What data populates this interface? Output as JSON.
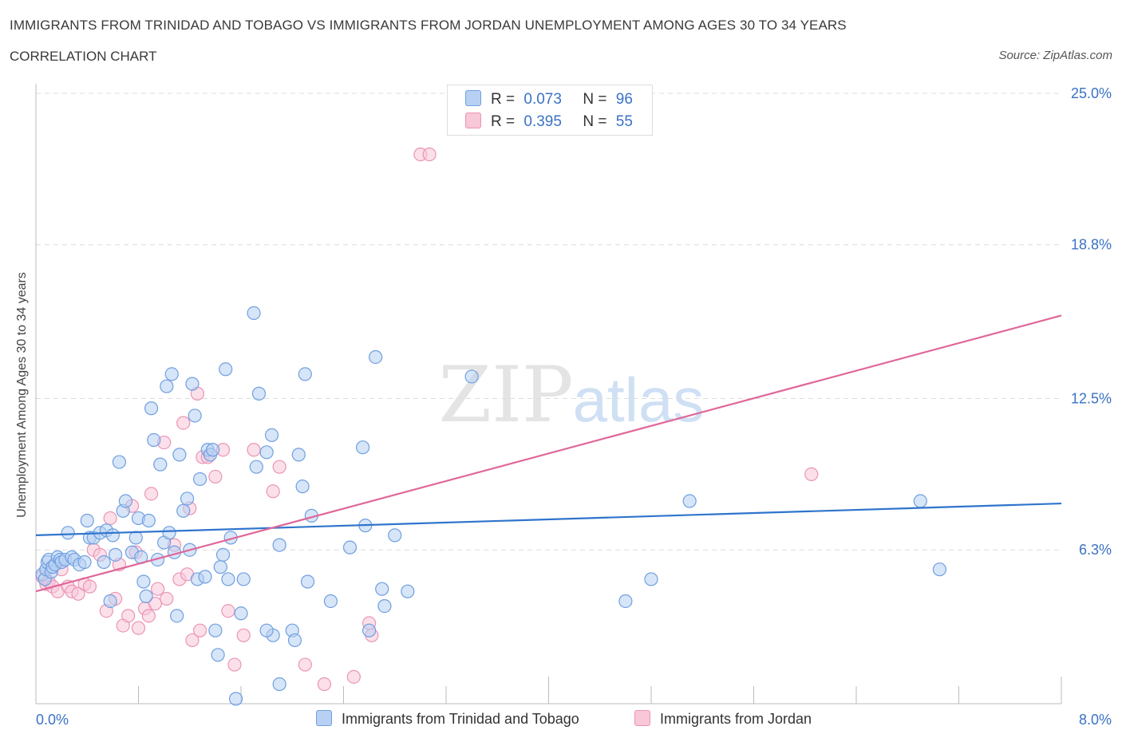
{
  "header": {
    "title": "IMMIGRANTS FROM TRINIDAD AND TOBAGO VS IMMIGRANTS FROM JORDAN UNEMPLOYMENT AMONG AGES 30 TO 34 YEARS",
    "subtitle": "CORRELATION CHART",
    "source": "Source: ZipAtlas.com"
  },
  "watermark": {
    "zip": "ZIP",
    "atlas": "atlas"
  },
  "legend": {
    "r_label": "R =",
    "n_label": "N =",
    "series1": {
      "r": "0.073",
      "n": "96"
    },
    "series2": {
      "r": "0.395",
      "n": "55"
    }
  },
  "chart_data": {
    "type": "scatter",
    "title": "IMMIGRANTS FROM TRINIDAD AND TOBAGO VS IMMIGRANTS FROM JORDAN UNEMPLOYMENT AMONG AGES 30 TO 34 YEARS",
    "xlabel": "",
    "ylabel": "Unemployment Among Ages 30 to 34 years",
    "xlim": [
      0,
      8
    ],
    "ylim": [
      0,
      25.0
    ],
    "x_tick_labels": [
      "0.0%",
      "8.0%"
    ],
    "y_ticks": [
      6.3,
      12.5,
      18.8,
      25.0
    ],
    "y_tick_labels": [
      "6.3%",
      "12.5%",
      "18.8%",
      "25.0%"
    ],
    "grid": true,
    "legend_position": "top-center",
    "series": [
      {
        "name": "Immigrants from Trinidad and Tobago",
        "color": "#6f9fe0",
        "fill": "#b7d0f3",
        "trend_color": "#2f74cc",
        "trend": [
          [
            0,
            6.9
          ],
          [
            8,
            8.2
          ]
        ],
        "points": [
          [
            0.05,
            5.3
          ],
          [
            0.07,
            5.1
          ],
          [
            0.08,
            5.5
          ],
          [
            0.09,
            5.8
          ],
          [
            0.1,
            5.9
          ],
          [
            0.12,
            5.4
          ],
          [
            0.13,
            5.6
          ],
          [
            0.15,
            5.7
          ],
          [
            0.17,
            6.0
          ],
          [
            0.19,
            5.9
          ],
          [
            0.2,
            5.8
          ],
          [
            0.23,
            5.9
          ],
          [
            0.25,
            7.0
          ],
          [
            0.28,
            6.0
          ],
          [
            0.3,
            5.9
          ],
          [
            0.34,
            5.7
          ],
          [
            0.38,
            5.8
          ],
          [
            0.4,
            7.5
          ],
          [
            0.42,
            6.8
          ],
          [
            0.45,
            6.8
          ],
          [
            0.5,
            7.0
          ],
          [
            0.53,
            5.8
          ],
          [
            0.55,
            7.1
          ],
          [
            0.58,
            4.2
          ],
          [
            0.6,
            6.9
          ],
          [
            0.62,
            6.1
          ],
          [
            0.65,
            9.9
          ],
          [
            0.68,
            7.9
          ],
          [
            0.7,
            8.3
          ],
          [
            0.75,
            6.2
          ],
          [
            0.78,
            6.8
          ],
          [
            0.8,
            7.6
          ],
          [
            0.82,
            6.0
          ],
          [
            0.84,
            5.0
          ],
          [
            0.86,
            4.4
          ],
          [
            0.88,
            7.5
          ],
          [
            0.9,
            12.1
          ],
          [
            0.92,
            10.8
          ],
          [
            0.95,
            5.9
          ],
          [
            0.97,
            9.8
          ],
          [
            1.0,
            6.6
          ],
          [
            1.02,
            13.0
          ],
          [
            1.04,
            7.0
          ],
          [
            1.06,
            13.5
          ],
          [
            1.08,
            6.2
          ],
          [
            1.1,
            3.6
          ],
          [
            1.12,
            10.2
          ],
          [
            1.15,
            7.9
          ],
          [
            1.18,
            8.4
          ],
          [
            1.2,
            6.3
          ],
          [
            1.22,
            13.1
          ],
          [
            1.24,
            11.8
          ],
          [
            1.26,
            5.1
          ],
          [
            1.28,
            9.2
          ],
          [
            1.32,
            5.2
          ],
          [
            1.34,
            10.4
          ],
          [
            1.36,
            10.2
          ],
          [
            1.38,
            10.4
          ],
          [
            1.4,
            3.0
          ],
          [
            1.42,
            2.0
          ],
          [
            1.44,
            5.6
          ],
          [
            1.46,
            6.1
          ],
          [
            1.48,
            13.7
          ],
          [
            1.5,
            5.1
          ],
          [
            1.52,
            6.8
          ],
          [
            1.56,
            0.2
          ],
          [
            1.6,
            3.7
          ],
          [
            1.62,
            5.1
          ],
          [
            1.7,
            16.0
          ],
          [
            1.72,
            9.7
          ],
          [
            1.74,
            12.7
          ],
          [
            1.8,
            10.3
          ],
          [
            1.84,
            11.0
          ],
          [
            1.9,
            6.5
          ],
          [
            2.0,
            3.0
          ],
          [
            2.02,
            2.6
          ],
          [
            2.05,
            10.2
          ],
          [
            2.08,
            8.9
          ],
          [
            2.1,
            13.5
          ],
          [
            2.12,
            5.0
          ],
          [
            2.15,
            7.7
          ],
          [
            2.3,
            4.2
          ],
          [
            2.45,
            6.4
          ],
          [
            2.55,
            10.5
          ],
          [
            2.57,
            7.3
          ],
          [
            2.6,
            3.0
          ],
          [
            2.65,
            14.2
          ],
          [
            2.7,
            4.7
          ],
          [
            2.72,
            4.0
          ],
          [
            2.8,
            6.9
          ],
          [
            2.9,
            4.6
          ],
          [
            3.4,
            13.4
          ],
          [
            4.6,
            4.2
          ],
          [
            4.8,
            5.1
          ],
          [
            5.1,
            8.3
          ],
          [
            6.9,
            8.3
          ],
          [
            7.05,
            5.5
          ],
          [
            1.9,
            0.8
          ],
          [
            1.85,
            2.8
          ],
          [
            1.8,
            3.0
          ]
        ]
      },
      {
        "name": "Immigrants from Jordan",
        "color": "#ec94b4",
        "fill": "#f8c7d8",
        "trend_color": "#e0679a",
        "trend": [
          [
            0,
            4.6
          ],
          [
            8,
            15.9
          ]
        ],
        "points": [
          [
            0.05,
            5.2
          ],
          [
            0.08,
            4.9
          ],
          [
            0.1,
            5.0
          ],
          [
            0.13,
            4.8
          ],
          [
            0.17,
            4.6
          ],
          [
            0.2,
            5.5
          ],
          [
            0.25,
            4.8
          ],
          [
            0.28,
            4.6
          ],
          [
            0.33,
            4.5
          ],
          [
            0.38,
            4.9
          ],
          [
            0.42,
            4.8
          ],
          [
            0.45,
            6.3
          ],
          [
            0.5,
            6.1
          ],
          [
            0.55,
            3.8
          ],
          [
            0.58,
            7.6
          ],
          [
            0.62,
            4.3
          ],
          [
            0.65,
            5.7
          ],
          [
            0.68,
            3.2
          ],
          [
            0.72,
            3.6
          ],
          [
            0.75,
            8.1
          ],
          [
            0.78,
            6.2
          ],
          [
            0.8,
            3.1
          ],
          [
            0.85,
            3.9
          ],
          [
            0.88,
            3.6
          ],
          [
            0.9,
            8.6
          ],
          [
            0.93,
            4.1
          ],
          [
            0.95,
            4.7
          ],
          [
            1.0,
            10.7
          ],
          [
            1.02,
            4.3
          ],
          [
            1.08,
            6.5
          ],
          [
            1.12,
            5.1
          ],
          [
            1.15,
            11.5
          ],
          [
            1.18,
            5.3
          ],
          [
            1.2,
            8.0
          ],
          [
            1.22,
            2.6
          ],
          [
            1.26,
            12.7
          ],
          [
            1.3,
            10.1
          ],
          [
            1.34,
            10.1
          ],
          [
            1.4,
            9.3
          ],
          [
            1.46,
            10.4
          ],
          [
            1.5,
            3.8
          ],
          [
            1.55,
            1.6
          ],
          [
            1.62,
            2.8
          ],
          [
            1.7,
            10.4
          ],
          [
            1.85,
            8.7
          ],
          [
            1.9,
            9.7
          ],
          [
            2.1,
            1.6
          ],
          [
            2.25,
            0.8
          ],
          [
            2.48,
            1.1
          ],
          [
            2.6,
            3.3
          ],
          [
            2.62,
            2.8
          ],
          [
            3.0,
            22.5
          ],
          [
            3.07,
            22.5
          ],
          [
            6.05,
            9.4
          ],
          [
            1.28,
            3.0
          ]
        ]
      }
    ]
  },
  "bottom_legend": {
    "series1": "Immigrants from Trinidad and Tobago",
    "series2": "Immigrants from Jordan"
  },
  "colors": {
    "axis_label_blue": "#3a72c4",
    "grid": "#dcdcdc"
  }
}
